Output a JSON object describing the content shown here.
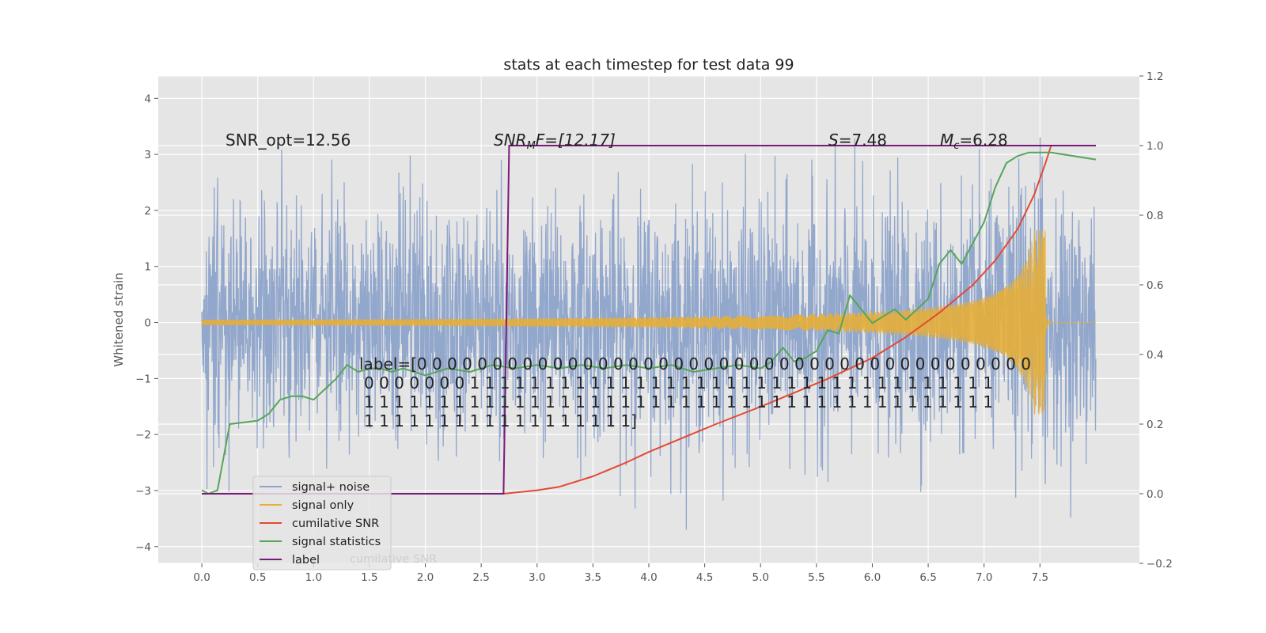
{
  "chart_data": {
    "type": "line",
    "title": "stats at each timestep for test data 99",
    "ylabel": "Whitened strain",
    "xlim": [
      -0.39,
      8.39
    ],
    "ylim": [
      -4.3,
      4.4
    ],
    "y2lim": [
      -0.2,
      1.2
    ],
    "xticks": [
      0.0,
      0.5,
      1.0,
      1.5,
      2.0,
      2.5,
      3.0,
      3.5,
      4.0,
      4.5,
      5.0,
      5.5,
      6.0,
      6.5,
      7.0,
      7.5
    ],
    "yticks": [
      -4,
      -3,
      -2,
      -1,
      0,
      1,
      2,
      3,
      4
    ],
    "y2ticks": [
      -0.2,
      0.0,
      0.2,
      0.4,
      0.6,
      0.8,
      1.0,
      1.2
    ],
    "grid": true,
    "legend_position": "lower-left",
    "annotations": {
      "snr_opt": "SNR_opt=12.56",
      "snr_mf_main": "SNR",
      "snr_mf_sub": "M",
      "snr_mf_rest": "F=[12.17]",
      "s_main": "S",
      "s_rest": "=7.48",
      "mc_main": "M",
      "mc_sub": "c",
      "mc_rest": "=6.28",
      "label_lines": [
        "label=[0 0 0 0 0 0 0 0 0 0 0 0 0 0 0 0 0 0 0 0 0 0 0 0 0 0 0 0 0 0 0 0 0 0 0 0 0 0 0 0 0",
        "0 0 0 0 0 0 0 1 1 1 1 1 1 1 1 1 1 1 1 1 1 1 1 1 1 1 1 1 1 1 1 1 1 1 1 1 1 1 1 1 1 1",
        "1 1 1 1 1 1 1 1 1 1 1 1 1 1 1 1 1 1 1 1 1 1 1 1 1 1 1 1 1 1 1 1 1 1 1 1 1 1 1 1 1 1",
        "1 1 1 1 1 1 1 1 1 1 1 1 1 1 1 1 1 1]"
      ]
    },
    "series": [
      {
        "name": "signal+ noise",
        "color": "#8da3ca",
        "kind": "noise",
        "x_range": [
          0.0,
          8.0
        ],
        "std": 1.05,
        "axis": "left"
      },
      {
        "name": "signal only",
        "color": "#e5ae38",
        "kind": "chirp",
        "x_range": [
          0.0,
          7.6
        ],
        "peak_amplitude": 1.65,
        "merger_x": 7.55,
        "axis": "left"
      },
      {
        "name": "cumilative SNR",
        "color": "#e24a33",
        "axis": "right",
        "x": [
          0.0,
          2.7,
          3.0,
          3.2,
          3.5,
          3.8,
          4.0,
          4.3,
          4.6,
          5.0,
          5.3,
          5.6,
          6.0,
          6.3,
          6.6,
          6.9,
          7.1,
          7.3,
          7.45,
          7.55,
          7.6,
          7.7,
          8.0
        ],
        "y": [
          0.0,
          0.0,
          0.01,
          0.02,
          0.05,
          0.09,
          0.12,
          0.16,
          0.2,
          0.25,
          0.29,
          0.33,
          0.39,
          0.45,
          0.52,
          0.6,
          0.67,
          0.76,
          0.86,
          0.95,
          1.0,
          1.0,
          1.0
        ]
      },
      {
        "name": "signal statistics",
        "color": "#55a55a",
        "axis": "right",
        "x": [
          0.0,
          0.06,
          0.14,
          0.25,
          0.5,
          0.6,
          0.7,
          0.8,
          0.9,
          1.0,
          1.1,
          1.2,
          1.3,
          1.4,
          1.5,
          1.6,
          1.7,
          1.8,
          2.0,
          2.2,
          2.4,
          2.6,
          2.8,
          3.0,
          3.2,
          3.4,
          3.6,
          3.8,
          4.0,
          4.2,
          4.4,
          4.6,
          4.8,
          5.0,
          5.1,
          5.2,
          5.3,
          5.4,
          5.5,
          5.6,
          5.7,
          5.8,
          5.9,
          6.0,
          6.2,
          6.3,
          6.4,
          6.5,
          6.6,
          6.7,
          6.8,
          6.9,
          7.0,
          7.1,
          7.2,
          7.3,
          7.4,
          7.6,
          8.0
        ],
        "y": [
          0.01,
          0.0,
          0.01,
          0.2,
          0.21,
          0.23,
          0.27,
          0.28,
          0.28,
          0.27,
          0.3,
          0.33,
          0.37,
          0.35,
          0.36,
          0.36,
          0.35,
          0.36,
          0.34,
          0.36,
          0.35,
          0.37,
          0.36,
          0.37,
          0.36,
          0.37,
          0.36,
          0.37,
          0.36,
          0.37,
          0.35,
          0.36,
          0.37,
          0.36,
          0.38,
          0.42,
          0.38,
          0.39,
          0.41,
          0.47,
          0.46,
          0.57,
          0.53,
          0.49,
          0.53,
          0.5,
          0.53,
          0.56,
          0.66,
          0.7,
          0.66,
          0.72,
          0.78,
          0.88,
          0.95,
          0.97,
          0.98,
          0.98,
          0.96
        ]
      },
      {
        "name": "label",
        "color": "#7a1a7a",
        "axis": "right",
        "x": [
          0.0,
          2.7,
          2.75,
          8.0
        ],
        "y": [
          0.0,
          0.0,
          1.0,
          1.0
        ]
      }
    ],
    "legend_ghost": "cumilative SNR"
  }
}
